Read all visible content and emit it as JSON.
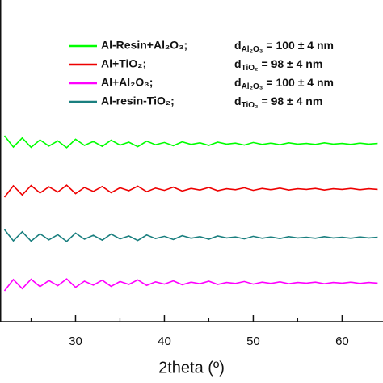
{
  "chart_data": {
    "type": "line",
    "xlabel": "2theta (º)",
    "x": [
      22,
      23,
      24,
      25,
      26,
      27,
      28,
      29,
      30,
      31,
      32,
      33,
      34,
      35,
      36,
      37,
      38,
      39,
      40,
      41,
      42,
      43,
      44,
      45,
      46,
      47,
      48,
      49,
      50,
      51,
      52,
      53,
      54,
      55,
      56,
      57,
      58,
      59,
      60,
      61,
      62,
      63,
      64
    ],
    "xlim": [
      21.5,
      64.6
    ],
    "xticks": [
      30,
      40,
      50,
      60
    ],
    "xminorticks": [
      25,
      35,
      45,
      55
    ],
    "ylim": [
      0,
      99.5
    ],
    "series": [
      {
        "name": "Al-Resin+Al₂O₃;",
        "color": "#00ff00",
        "size_symbol": "d",
        "size_phase": "Al₂O₃",
        "size_value": "= 100 ± 4 nm",
        "values": [
          57.5,
          54,
          56.8,
          53.9,
          56.2,
          54.3,
          55.9,
          53.8,
          56.4,
          54.5,
          55.7,
          54.2,
          56.1,
          54.6,
          55.5,
          54.1,
          55.8,
          54.7,
          55.4,
          54.4,
          55.6,
          54.8,
          55.3,
          54.5,
          55.5,
          54.9,
          55.2,
          54.6,
          55.4,
          54.8,
          55.2,
          54.7,
          55.3,
          54.9,
          55.1,
          54.8,
          55.3,
          54.9,
          55.1,
          54.8,
          55.2,
          54.9,
          55.1
        ]
      },
      {
        "name": "Al+TiO₂;",
        "color": "#ee0000",
        "size_symbol": "d",
        "size_phase": "TiO₂",
        "size_value": "= 98 ± 4 nm",
        "values": [
          38.5,
          42,
          39.2,
          42.1,
          39.8,
          41.7,
          40.1,
          42.2,
          39.6,
          41.5,
          40.3,
          41.8,
          39.9,
          41.4,
          40.5,
          41.9,
          40.2,
          41.3,
          40.6,
          41.6,
          40.4,
          41.2,
          40.7,
          41.5,
          40.5,
          41.1,
          40.8,
          41.4,
          40.6,
          41.2,
          40.8,
          41.3,
          40.7,
          41.1,
          40.9,
          41.2,
          40.7,
          41.1,
          40.9,
          41.2,
          40.8,
          41.1,
          40.9
        ]
      },
      {
        "name": "Al+Al₂O₃;",
        "color": "#ff00ff",
        "size_symbol": "d",
        "size_phase": "Al₂O₃",
        "size_value": "= 100 ± 4 nm",
        "values": [
          9.5,
          13,
          10.2,
          13.1,
          10.8,
          12.7,
          11.1,
          13.2,
          10.6,
          12.5,
          11.3,
          12.8,
          10.9,
          12.4,
          11.5,
          12.9,
          11.2,
          12.3,
          11.6,
          12.6,
          11.4,
          12.2,
          11.7,
          12.5,
          11.5,
          12.1,
          11.8,
          12.4,
          11.6,
          12.2,
          11.8,
          12.3,
          11.7,
          12.1,
          11.9,
          12.2,
          11.7,
          12.1,
          11.9,
          12.2,
          11.8,
          12.1,
          11.9
        ]
      },
      {
        "name": "Al-resin-TiO₂;",
        "color": "#1a7f7f",
        "size_symbol": "d",
        "size_phase": "TiO₂",
        "size_value": "= 98 ± 4 nm",
        "values": [
          28.5,
          25,
          27.8,
          24.9,
          27.2,
          25.3,
          26.9,
          24.8,
          27.4,
          25.5,
          26.7,
          25.2,
          27.1,
          25.6,
          26.5,
          25.1,
          26.8,
          25.7,
          26.4,
          25.4,
          26.6,
          25.8,
          26.3,
          25.5,
          26.5,
          25.9,
          26.2,
          25.6,
          26.4,
          25.8,
          26.2,
          25.7,
          26.3,
          25.9,
          26.1,
          25.8,
          26.3,
          25.9,
          26.1,
          25.8,
          26.2,
          25.9,
          26.1
        ]
      }
    ]
  }
}
